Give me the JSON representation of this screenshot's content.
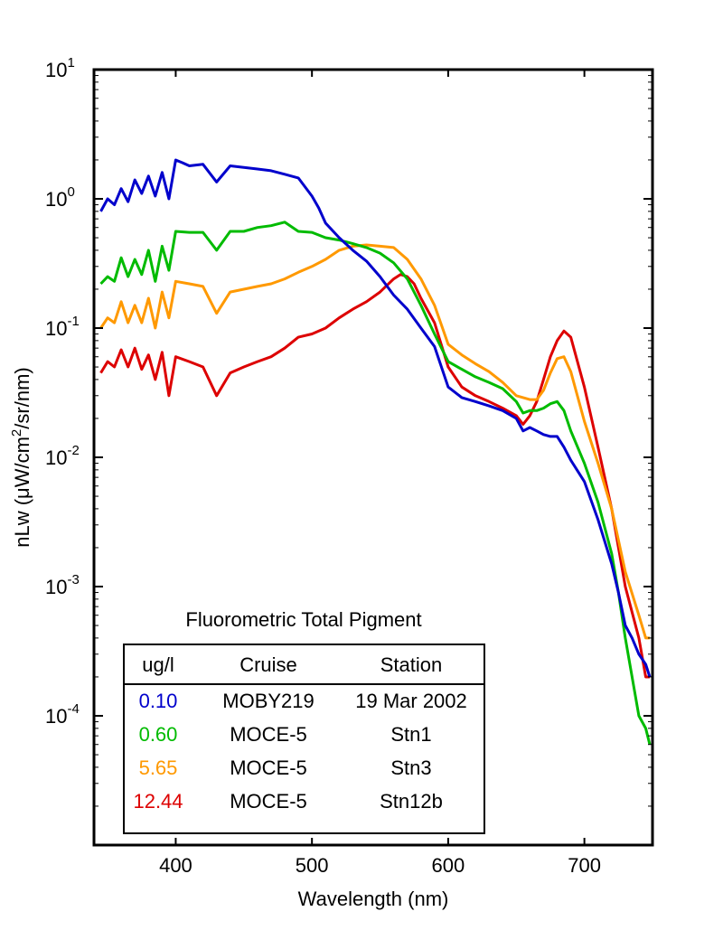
{
  "chart_data": {
    "type": "line",
    "xlabel": "Wavelength (nm)",
    "ylabel": {
      "prefix": "nLw (μW/cm",
      "sup": "2",
      "suffix": "/sr/nm)"
    },
    "xlim": [
      340,
      750
    ],
    "ylim": [
      1e-05,
      10
    ],
    "yscale": "log",
    "xticks": [
      400,
      500,
      600,
      700
    ],
    "yticks": [
      {
        "value": 10,
        "base": "10",
        "exp": "1"
      },
      {
        "value": 1,
        "base": "10",
        "exp": "0"
      },
      {
        "value": 0.1,
        "base": "10",
        "exp": "-1"
      },
      {
        "value": 0.01,
        "base": "10",
        "exp": "-2"
      },
      {
        "value": 0.001,
        "base": "10",
        "exp": "-3"
      },
      {
        "value": 0.0001,
        "base": "10",
        "exp": "-4"
      }
    ],
    "grid": false,
    "legend": {
      "title": "Fluorometric Total Pigment",
      "headers": [
        "ug/l",
        "Cruise",
        "Station"
      ],
      "placement": "bottom-left"
    },
    "series": [
      {
        "color": "#0000cc",
        "label_value": "0.10",
        "cruise": "MOBY219",
        "station": "19 Mar 2002",
        "x": [
          345,
          350,
          355,
          360,
          365,
          370,
          375,
          380,
          385,
          390,
          395,
          400,
          405,
          410,
          420,
          430,
          440,
          450,
          460,
          470,
          480,
          490,
          500,
          505,
          510,
          520,
          530,
          540,
          550,
          560,
          570,
          580,
          590,
          600,
          610,
          620,
          630,
          640,
          650,
          655,
          660,
          665,
          670,
          675,
          680,
          685,
          690,
          700,
          710,
          720,
          725,
          730,
          735,
          740,
          745,
          748
        ],
        "y": [
          0.8,
          1.0,
          0.9,
          1.2,
          0.95,
          1.4,
          1.1,
          1.5,
          1.05,
          1.6,
          1.0,
          2.0,
          1.9,
          1.8,
          1.85,
          1.35,
          1.8,
          1.75,
          1.7,
          1.65,
          1.55,
          1.45,
          1.05,
          0.85,
          0.65,
          0.5,
          0.4,
          0.33,
          0.25,
          0.18,
          0.14,
          0.1,
          0.072,
          0.035,
          0.029,
          0.027,
          0.025,
          0.023,
          0.02,
          0.016,
          0.017,
          0.016,
          0.015,
          0.0145,
          0.0145,
          0.012,
          0.0095,
          0.0065,
          0.0033,
          0.0015,
          0.0009,
          0.0005,
          0.0004,
          0.0003,
          0.00025,
          0.0002
        ]
      },
      {
        "color": "#00bb00",
        "label_value": "0.60",
        "cruise": "MOCE-5",
        "station": "Stn1",
        "x": [
          345,
          350,
          355,
          360,
          365,
          370,
          375,
          380,
          385,
          390,
          395,
          400,
          410,
          420,
          430,
          440,
          450,
          460,
          470,
          480,
          490,
          500,
          510,
          520,
          530,
          540,
          550,
          560,
          570,
          580,
          590,
          600,
          610,
          620,
          630,
          640,
          650,
          655,
          660,
          665,
          670,
          675,
          680,
          685,
          690,
          700,
          710,
          720,
          725,
          730,
          735,
          740,
          745,
          748
        ],
        "y": [
          0.22,
          0.25,
          0.23,
          0.35,
          0.25,
          0.34,
          0.26,
          0.4,
          0.23,
          0.43,
          0.28,
          0.56,
          0.55,
          0.55,
          0.4,
          0.56,
          0.56,
          0.6,
          0.62,
          0.66,
          0.56,
          0.55,
          0.5,
          0.48,
          0.45,
          0.42,
          0.38,
          0.32,
          0.24,
          0.15,
          0.09,
          0.055,
          0.048,
          0.042,
          0.038,
          0.034,
          0.027,
          0.022,
          0.023,
          0.023,
          0.024,
          0.026,
          0.027,
          0.023,
          0.016,
          0.009,
          0.0045,
          0.0018,
          0.0009,
          0.0004,
          0.0002,
          0.0001,
          8e-05,
          6e-05
        ]
      },
      {
        "color": "#ff9900",
        "label_value": "5.65",
        "cruise": "MOCE-5",
        "station": "Stn3",
        "x": [
          345,
          350,
          355,
          360,
          365,
          370,
          375,
          380,
          385,
          390,
          395,
          400,
          410,
          420,
          430,
          440,
          450,
          460,
          470,
          480,
          490,
          500,
          510,
          520,
          530,
          540,
          550,
          560,
          570,
          580,
          590,
          600,
          610,
          620,
          630,
          640,
          650,
          660,
          665,
          670,
          675,
          680,
          685,
          690,
          700,
          710,
          720,
          730,
          740,
          745,
          748
        ],
        "y": [
          0.1,
          0.12,
          0.11,
          0.16,
          0.11,
          0.15,
          0.11,
          0.17,
          0.1,
          0.19,
          0.12,
          0.23,
          0.22,
          0.21,
          0.13,
          0.19,
          0.2,
          0.21,
          0.22,
          0.24,
          0.27,
          0.3,
          0.34,
          0.4,
          0.43,
          0.44,
          0.43,
          0.42,
          0.34,
          0.24,
          0.15,
          0.075,
          0.062,
          0.053,
          0.046,
          0.038,
          0.03,
          0.028,
          0.028,
          0.033,
          0.045,
          0.058,
          0.06,
          0.046,
          0.019,
          0.009,
          0.004,
          0.0013,
          0.0006,
          0.0004,
          0.0004
        ]
      },
      {
        "color": "#dd0000",
        "label_value": "12.44",
        "cruise": "MOCE-5",
        "station": "Stn12b",
        "x": [
          345,
          350,
          355,
          360,
          365,
          370,
          375,
          380,
          385,
          390,
          395,
          400,
          410,
          420,
          430,
          440,
          450,
          460,
          470,
          480,
          490,
          500,
          510,
          520,
          530,
          540,
          550,
          560,
          565,
          570,
          575,
          580,
          590,
          600,
          610,
          620,
          630,
          640,
          650,
          655,
          660,
          665,
          670,
          675,
          680,
          685,
          690,
          700,
          710,
          720,
          730,
          740,
          745,
          748
        ],
        "y": [
          0.045,
          0.055,
          0.05,
          0.068,
          0.05,
          0.07,
          0.048,
          0.062,
          0.04,
          0.065,
          0.03,
          0.06,
          0.055,
          0.05,
          0.03,
          0.045,
          0.05,
          0.055,
          0.06,
          0.07,
          0.085,
          0.09,
          0.1,
          0.12,
          0.14,
          0.16,
          0.19,
          0.24,
          0.26,
          0.25,
          0.22,
          0.17,
          0.11,
          0.05,
          0.035,
          0.03,
          0.027,
          0.024,
          0.021,
          0.018,
          0.021,
          0.027,
          0.04,
          0.06,
          0.08,
          0.095,
          0.085,
          0.035,
          0.012,
          0.004,
          0.001,
          0.0004,
          0.0002,
          0.0002
        ]
      }
    ]
  }
}
